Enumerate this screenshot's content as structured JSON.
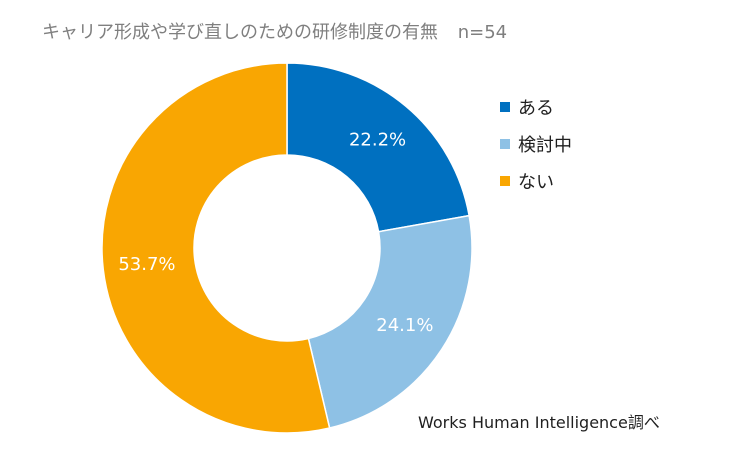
{
  "header": {
    "title": "キャリア形成や学び直しのための研修制度の有無",
    "sample": "n=54"
  },
  "chart_data": {
    "type": "pie",
    "variant": "donut",
    "title": "キャリア形成や学び直しのための研修制度の有無",
    "categories": [
      "ある",
      "検討中",
      "ない"
    ],
    "values": [
      22.2,
      24.1,
      53.7
    ],
    "labels": [
      "22.2%",
      "24.1%",
      "53.7%"
    ],
    "colors": [
      "#0070c0",
      "#8ec1e5",
      "#f9a602"
    ],
    "legend_position": "right"
  },
  "source": "Works Human Intelligence調べ"
}
